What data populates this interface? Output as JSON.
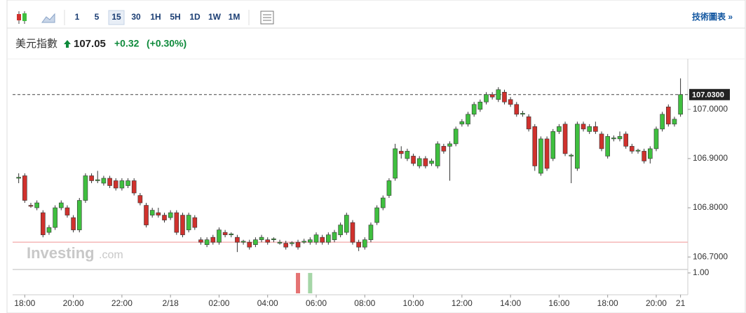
{
  "toolbar": {
    "buttons": [
      "1",
      "5",
      "15",
      "30",
      "1H",
      "5H",
      "1D",
      "1W",
      "1M"
    ],
    "selected": "15",
    "link": "技術圖表 »"
  },
  "header": {
    "name": "美元指數",
    "price": "107.05",
    "change": "+0.32",
    "change_pct": "(+0.30%)"
  },
  "watermark": {
    "brand": "Investing",
    "suffix": ".com"
  },
  "chart_data": {
    "type": "candlestick",
    "x": [
      -0.25,
      0,
      0.25,
      0.5,
      0.75,
      1,
      1.25,
      1.5,
      1.75,
      2,
      2.25,
      2.5,
      2.75,
      3,
      3.25,
      3.5,
      3.75,
      4,
      4.25,
      4.5,
      4.75,
      5,
      5.25,
      5.5,
      5.75,
      6,
      6.25,
      6.5,
      6.75,
      7,
      7.25,
      7.5,
      7.75,
      8,
      8.25,
      8.5,
      8.75,
      9,
      9.25,
      9.5,
      9.75,
      10,
      10.25,
      10.5,
      10.75,
      11,
      11.25,
      11.5,
      11.75,
      12,
      12.25,
      12.5,
      12.75,
      13,
      13.25,
      13.5,
      13.75,
      14,
      14.25,
      14.5,
      14.75,
      15,
      15.25,
      15.5,
      15.75,
      16,
      16.25,
      16.5,
      16.75,
      17,
      17.25,
      17.5,
      17.75,
      18,
      18.25,
      18.5,
      18.75,
      19,
      19.25,
      19.5,
      19.75,
      20,
      20.25,
      20.5,
      20.75,
      21,
      21.25,
      21.5,
      21.75,
      22,
      22.25,
      22.5,
      22.75,
      23,
      23.25,
      23.5,
      23.75,
      24,
      24.25,
      24.5,
      24.75,
      25,
      25.25,
      25.5,
      25.75,
      26,
      26.25,
      26.5,
      26.75,
      27
    ],
    "open": [
      106.86,
      106.865,
      106.805,
      106.8,
      106.79,
      106.75,
      106.76,
      106.8,
      106.8,
      106.78,
      106.755,
      106.815,
      106.865,
      106.855,
      106.85,
      106.86,
      106.855,
      106.84,
      106.845,
      106.855,
      106.825,
      106.805,
      106.785,
      106.79,
      106.785,
      106.78,
      106.79,
      106.785,
      106.755,
      106.78,
      106.735,
      106.725,
      106.74,
      106.73,
      106.75,
      106.745,
      106.74,
      106.73,
      106.73,
      106.725,
      106.735,
      106.735,
      106.735,
      106.728,
      106.728,
      106.727,
      106.73,
      106.73,
      106.73,
      106.73,
      106.74,
      106.73,
      106.735,
      106.745,
      106.75,
      106.77,
      106.73,
      106.72,
      106.735,
      106.77,
      106.8,
      106.825,
      106.86,
      106.915,
      106.9,
      106.905,
      106.885,
      106.9,
      106.89,
      106.885,
      106.925,
      106.925,
      106.93,
      106.97,
      106.97,
      106.99,
      107,
      107.015,
      107.03,
      107.02,
      107.035,
      107.02,
      107.01,
      106.99,
      106.985,
      106.965,
      106.87,
      106.94,
      106.9,
      106.955,
      106.97,
      106.905,
      106.88,
      106.97,
      106.955,
      106.965,
      106.95,
      106.905,
      106.94,
      106.94,
      106.95,
      106.925,
      106.915,
      106.915,
      106.9,
      106.92,
      106.96,
      107.005,
      106.97,
      106.99
    ],
    "high": [
      106.87,
      106.87,
      106.81,
      106.815,
      106.795,
      106.765,
      106.805,
      106.815,
      106.805,
      106.785,
      106.82,
      106.87,
      106.87,
      106.875,
      106.865,
      106.865,
      106.86,
      106.86,
      106.86,
      106.86,
      106.83,
      106.81,
      106.8,
      106.8,
      106.79,
      106.795,
      106.795,
      106.79,
      106.79,
      106.785,
      106.74,
      106.74,
      106.745,
      106.76,
      106.755,
      106.75,
      106.745,
      106.735,
      106.735,
      106.74,
      106.745,
      106.74,
      106.74,
      106.735,
      106.733,
      106.732,
      106.735,
      106.737,
      106.74,
      106.75,
      106.745,
      106.75,
      106.755,
      106.77,
      106.79,
      106.775,
      106.735,
      106.74,
      106.77,
      106.805,
      106.825,
      106.86,
      106.93,
      106.925,
      106.92,
      106.91,
      106.905,
      106.905,
      106.9,
      106.935,
      106.93,
      106.935,
      106.965,
      106.98,
      106.995,
      107.015,
      107.02,
      107.035,
      107.035,
      107.045,
      107.04,
      107.025,
      107.015,
      106.997,
      106.99,
      106.97,
      106.945,
      106.945,
      106.96,
      106.97,
      106.975,
      106.91,
      106.975,
      106.975,
      106.97,
      106.975,
      106.955,
      106.95,
      106.947,
      106.955,
      106.955,
      106.93,
      106.92,
      106.92,
      106.925,
      106.965,
      106.995,
      107.01,
      106.985,
      107.063
    ],
    "low": [
      106.85,
      106.81,
      106.8,
      106.795,
      106.74,
      106.745,
      106.755,
      106.795,
      106.78,
      106.75,
      106.75,
      106.81,
      106.85,
      106.85,
      106.845,
      106.84,
      106.835,
      106.835,
      106.84,
      106.825,
      106.805,
      106.76,
      106.78,
      106.78,
      106.77,
      106.775,
      106.745,
      106.74,
      106.75,
      106.755,
      106.725,
      106.72,
      106.725,
      106.725,
      106.74,
      106.74,
      106.71,
      106.725,
      106.715,
      106.72,
      106.73,
      106.725,
      106.73,
      106.725,
      106.715,
      106.722,
      106.715,
      106.727,
      106.725,
      106.725,
      106.725,
      106.725,
      106.73,
      106.74,
      106.745,
      106.725,
      106.712,
      106.715,
      106.73,
      106.765,
      106.795,
      106.82,
      106.855,
      106.9,
      106.895,
      106.885,
      106.88,
      106.88,
      106.885,
      106.88,
      106.91,
      106.855,
      106.925,
      106.965,
      106.965,
      106.985,
      106.995,
      107.01,
      107.02,
      107.015,
      107.01,
      107.005,
      106.985,
      106.985,
      106.955,
      106.875,
      106.865,
      106.875,
      106.895,
      106.95,
      106.905,
      106.85,
      106.875,
      106.955,
      106.95,
      106.95,
      106.915,
      106.9,
      106.935,
      106.935,
      106.92,
      106.91,
      106.91,
      106.89,
      106.89,
      106.915,
      106.955,
      106.965,
      106.965,
      106.985
    ],
    "close": [
      106.862,
      106.815,
      106.803,
      106.81,
      106.745,
      106.76,
      106.8,
      106.81,
      106.785,
      106.755,
      106.815,
      106.865,
      106.855,
      106.857,
      106.86,
      106.845,
      106.84,
      106.855,
      106.855,
      106.83,
      106.81,
      106.765,
      106.795,
      106.785,
      106.775,
      106.79,
      106.75,
      106.745,
      106.785,
      106.76,
      106.73,
      106.735,
      106.73,
      106.755,
      106.745,
      106.747,
      106.73,
      106.732,
      106.72,
      106.735,
      106.74,
      106.73,
      106.737,
      106.73,
      106.72,
      106.729,
      106.72,
      106.732,
      106.735,
      106.745,
      106.73,
      106.745,
      106.75,
      106.765,
      106.785,
      106.73,
      106.72,
      106.735,
      106.765,
      106.8,
      106.82,
      106.855,
      106.92,
      106.91,
      106.915,
      106.89,
      106.9,
      106.885,
      106.895,
      106.93,
      106.915,
      106.93,
      106.96,
      106.975,
      106.99,
      107.01,
      107.015,
      107.03,
      107.025,
      107.04,
      107.015,
      107.01,
      106.99,
      106.992,
      106.96,
      106.885,
      106.94,
      106.88,
      106.955,
      106.965,
      106.91,
      106.907,
      106.97,
      106.96,
      106.965,
      106.955,
      106.92,
      106.945,
      106.942,
      106.945,
      106.925,
      106.915,
      106.917,
      106.895,
      106.92,
      106.96,
      106.99,
      106.97,
      106.98,
      107.03
    ],
    "up_color": "#3fbf3f",
    "down_color": "#d0312d",
    "xlim": [
      -0.5,
      27.3
    ],
    "xticks": [
      {
        "value": 0,
        "label": "18:00"
      },
      {
        "value": 2,
        "label": "20:00"
      },
      {
        "value": 4,
        "label": "22:00"
      },
      {
        "value": 6,
        "label": "2/18"
      },
      {
        "value": 8,
        "label": "02:00"
      },
      {
        "value": 10,
        "label": "04:00"
      },
      {
        "value": 12,
        "label": "06:00"
      },
      {
        "value": 14,
        "label": "08:00"
      },
      {
        "value": 16,
        "label": "10:00"
      },
      {
        "value": 18,
        "label": "12:00"
      },
      {
        "value": 20,
        "label": "14:00"
      },
      {
        "value": 22,
        "label": "16:00"
      },
      {
        "value": 24,
        "label": "18:00"
      },
      {
        "value": 26,
        "label": "20:00"
      },
      {
        "value": 27,
        "label": "21"
      }
    ],
    "ylim": [
      106.676,
      107.101
    ],
    "yticks": [
      {
        "value": 106.7,
        "label": "106.7000"
      },
      {
        "value": 106.8,
        "label": "106.8000"
      },
      {
        "value": 106.9,
        "label": "106.9000"
      },
      {
        "value": 107,
        "label": "107.0000"
      }
    ],
    "last_price": {
      "value": 107.03,
      "label": "107.0300"
    },
    "reference_line": 106.73,
    "volume": {
      "x": [
        11.25,
        11.75
      ],
      "values": [
        1,
        1
      ],
      "colors": [
        "#e57373",
        "#a5d6a7"
      ],
      "ylim": [
        0,
        1.1
      ],
      "yticks": [
        {
          "value": 1,
          "label": "1.00"
        }
      ]
    }
  }
}
